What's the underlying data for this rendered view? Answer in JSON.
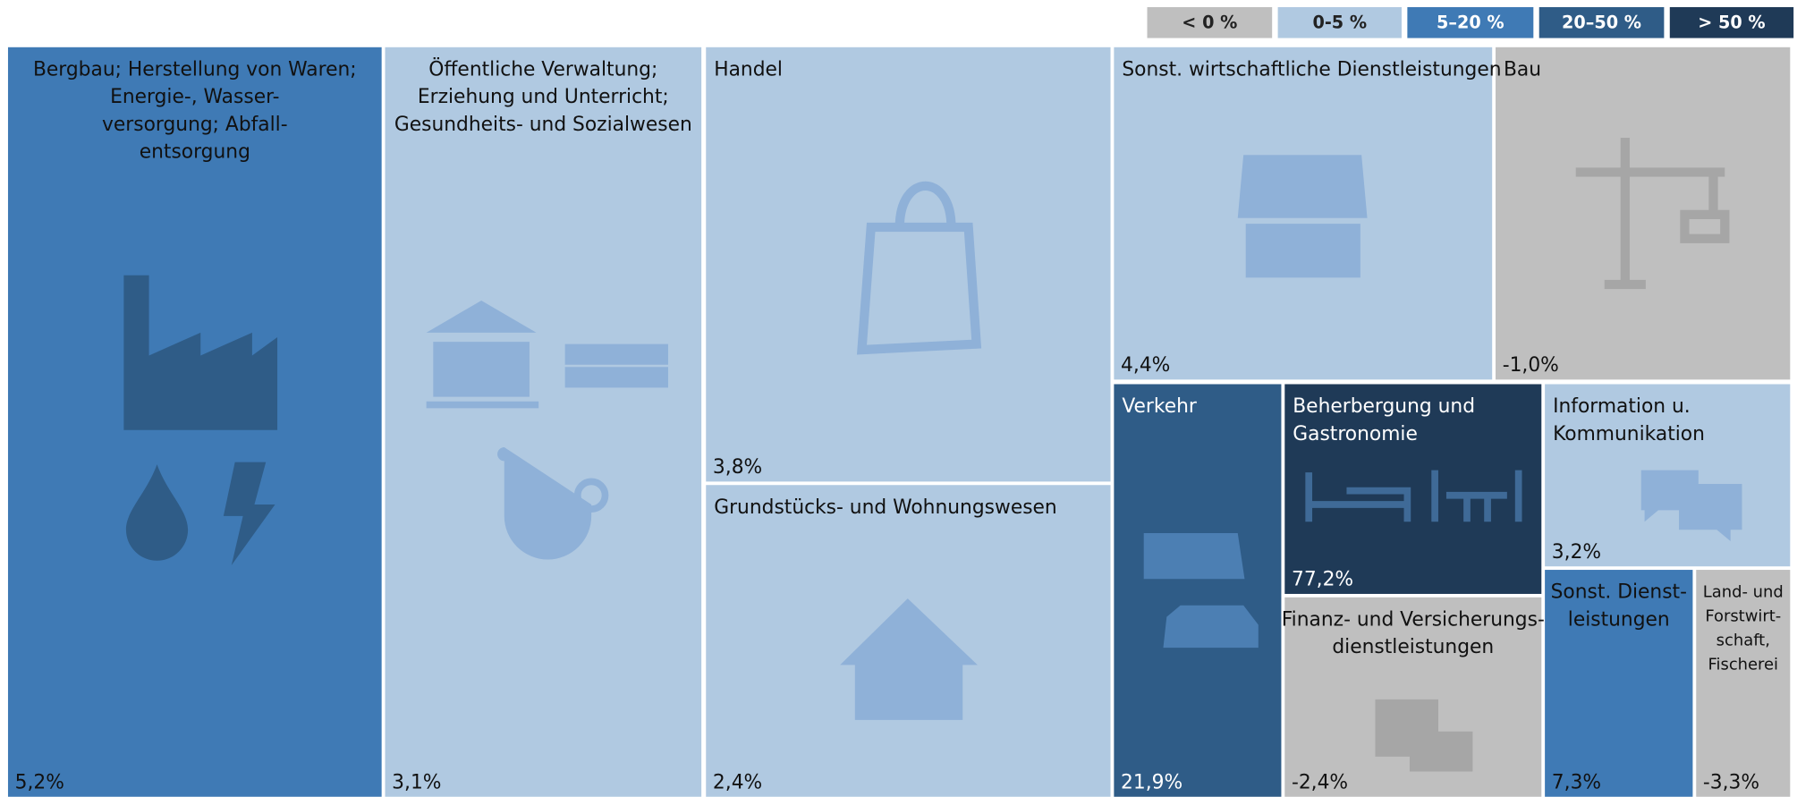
{
  "chart_data": {
    "type": "treemap",
    "legend": [
      {
        "label": "< 0 %",
        "color": "#bfbfbf"
      },
      {
        "label": "0-5 %",
        "color": "#b0c9e1"
      },
      {
        "label": "5–20 %",
        "color": "#3f7ab5"
      },
      {
        "label": "20–50 %",
        "color": "#2f5c87"
      },
      {
        "label": "> 50 %",
        "color": "#1f3a57"
      }
    ],
    "categories": [
      [
        "Bergbau; Herstellung von Waren;",
        "Energie-, Wasser-",
        "versorgung; Abfall-",
        "entsorgung"
      ],
      [
        "Öffentliche Verwaltung;",
        "Erziehung und Unterricht;",
        "Gesundheits- und Sozialwesen"
      ],
      [
        "Handel"
      ],
      [
        "Grundstücks- und Wohnungswesen"
      ],
      [
        "Sonst. wirtschaftliche Dienstleistungen"
      ],
      [
        "Bau"
      ],
      [
        "Verkehr"
      ],
      [
        "Beherbergung und",
        "Gastronomie"
      ],
      [
        "Finanz- und Versicherungs-",
        "dienstleistungen"
      ],
      [
        "Information u.",
        "Kommunikation"
      ],
      [
        "Sonst. Dienst-",
        "leistungen"
      ],
      [
        "Land- und",
        "Forstwirt-",
        "schaft,",
        "Fischerei"
      ]
    ],
    "values": [
      5.2,
      3.1,
      3.8,
      2.4,
      4.4,
      -1.0,
      21.9,
      77.2,
      -2.4,
      3.2,
      7.3,
      -3.3
    ],
    "value_labels": [
      "5,2%",
      "3,1%",
      "3,8%",
      "2,4%",
      "4,4%",
      "-1,0%",
      "21,9%",
      "77,2%",
      "-2,4%",
      "3,2%",
      "7,3%",
      "-3,3%"
    ],
    "colors": [
      "#3f7ab5",
      "#b0c9e1",
      "#b0c9e1",
      "#b0c9e1",
      "#b0c9e1",
      "#bfbfbf",
      "#2f5c87",
      "#1f3a57",
      "#bfbfbf",
      "#b0c9e1",
      "#3f7ab5",
      "#bfbfbf"
    ]
  }
}
